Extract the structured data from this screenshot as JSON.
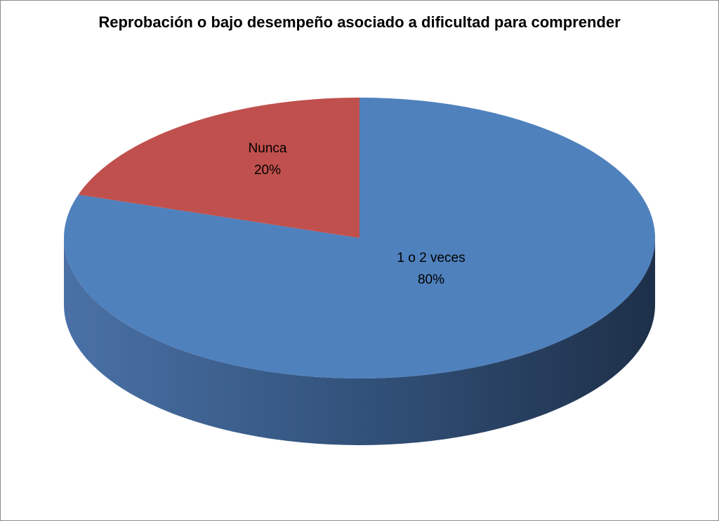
{
  "chart_data": {
    "type": "pie",
    "style": "3d",
    "title": "Reprobación o bajo desempeño asociado a dificultad para comprender",
    "slices": [
      {
        "label": "1 o 2 veces",
        "value": 80,
        "value_label": "80%",
        "color": "#4f81bd",
        "side_color": "#3a5e8c"
      },
      {
        "label": "Nunca",
        "value": 20,
        "value_label": "20%",
        "color": "#c0504d",
        "side_color": "#8c3a38"
      }
    ]
  }
}
